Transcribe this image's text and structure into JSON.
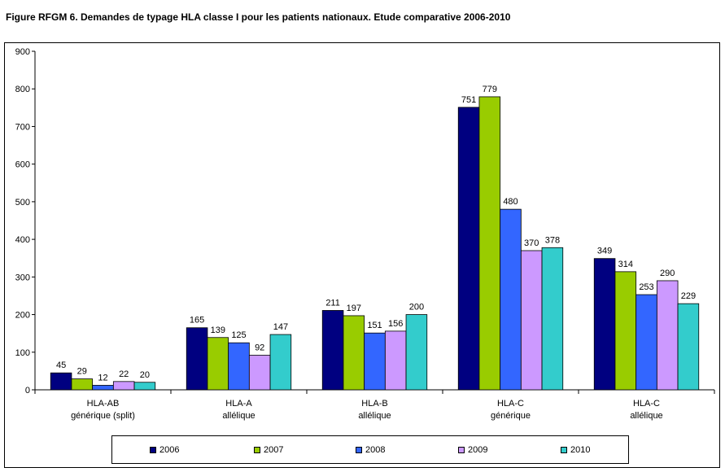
{
  "title": "Figure RFGM 6. Demandes de typage HLA classe I pour les patients nationaux. Etude comparative 2006-2010",
  "chart_data": {
    "type": "bar",
    "categories": [
      [
        "HLA-AB",
        "générique (split)"
      ],
      [
        "HLA-A",
        "allélique"
      ],
      [
        "HLA-B",
        "allélique"
      ],
      [
        "HLA-C",
        "générique"
      ],
      [
        "HLA-C",
        "allélique"
      ]
    ],
    "series": [
      {
        "name": "2006",
        "color": "#000080",
        "values": [
          45,
          165,
          211,
          751,
          349
        ]
      },
      {
        "name": "2007",
        "color": "#99cc00",
        "values": [
          29,
          139,
          197,
          779,
          314
        ]
      },
      {
        "name": "2008",
        "color": "#3366ff",
        "values": [
          12,
          125,
          151,
          480,
          253
        ]
      },
      {
        "name": "2009",
        "color": "#cc99ff",
        "values": [
          22,
          92,
          156,
          370,
          290
        ]
      },
      {
        "name": "2010",
        "color": "#33cccc",
        "values": [
          20,
          147,
          200,
          378,
          229
        ]
      }
    ],
    "ylim": [
      0,
      900
    ],
    "yticks": [
      0,
      100,
      200,
      300,
      400,
      500,
      600,
      700,
      800,
      900
    ],
    "grid": false,
    "legend": "bottom"
  }
}
